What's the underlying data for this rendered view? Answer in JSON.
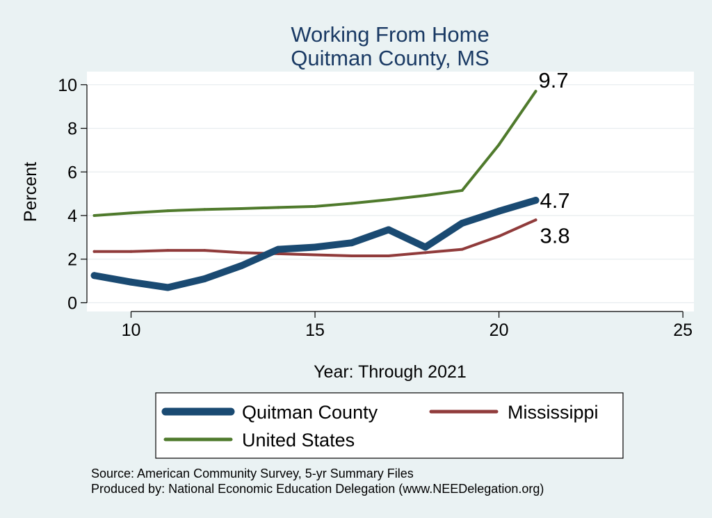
{
  "chart_data": {
    "type": "line",
    "title": "Working From Home",
    "subtitle": "Quitman County, MS",
    "xlabel": "Year: Through 2021",
    "ylabel": "Percent",
    "xlim": [
      8.8,
      25.3
    ],
    "ylim": [
      -0.4,
      10.6
    ],
    "xticks": [
      10,
      15,
      20,
      25
    ],
    "yticks": [
      0,
      2,
      4,
      6,
      8,
      10
    ],
    "grid": true,
    "legend_position": "bottom",
    "x": [
      9,
      10,
      11,
      12,
      13,
      14,
      15,
      16,
      17,
      18,
      19,
      20,
      21
    ],
    "series": [
      {
        "name": "Quitman County",
        "color": "#1a4a72",
        "values": [
          1.25,
          0.95,
          0.7,
          1.1,
          1.7,
          2.45,
          2.55,
          2.75,
          3.35,
          2.55,
          3.65,
          4.2,
          4.7
        ],
        "end_label": "4.7"
      },
      {
        "name": "Mississippi",
        "color": "#903b3b",
        "values": [
          2.35,
          2.35,
          2.4,
          2.4,
          2.3,
          2.25,
          2.2,
          2.15,
          2.15,
          2.3,
          2.45,
          3.05,
          3.8
        ],
        "end_label": "3.8"
      },
      {
        "name": "United States",
        "color": "#4f7a2c",
        "values": [
          4.0,
          4.12,
          4.22,
          4.28,
          4.32,
          4.37,
          4.42,
          4.56,
          4.73,
          4.92,
          5.15,
          7.25,
          9.7
        ],
        "end_label": "9.7"
      }
    ]
  },
  "notes": {
    "source": "Source: American Community Survey, 5-yr Summary Files",
    "produced_by": "Produced by: National Economic Education Delegation (www.NEEDelegation.org)"
  }
}
